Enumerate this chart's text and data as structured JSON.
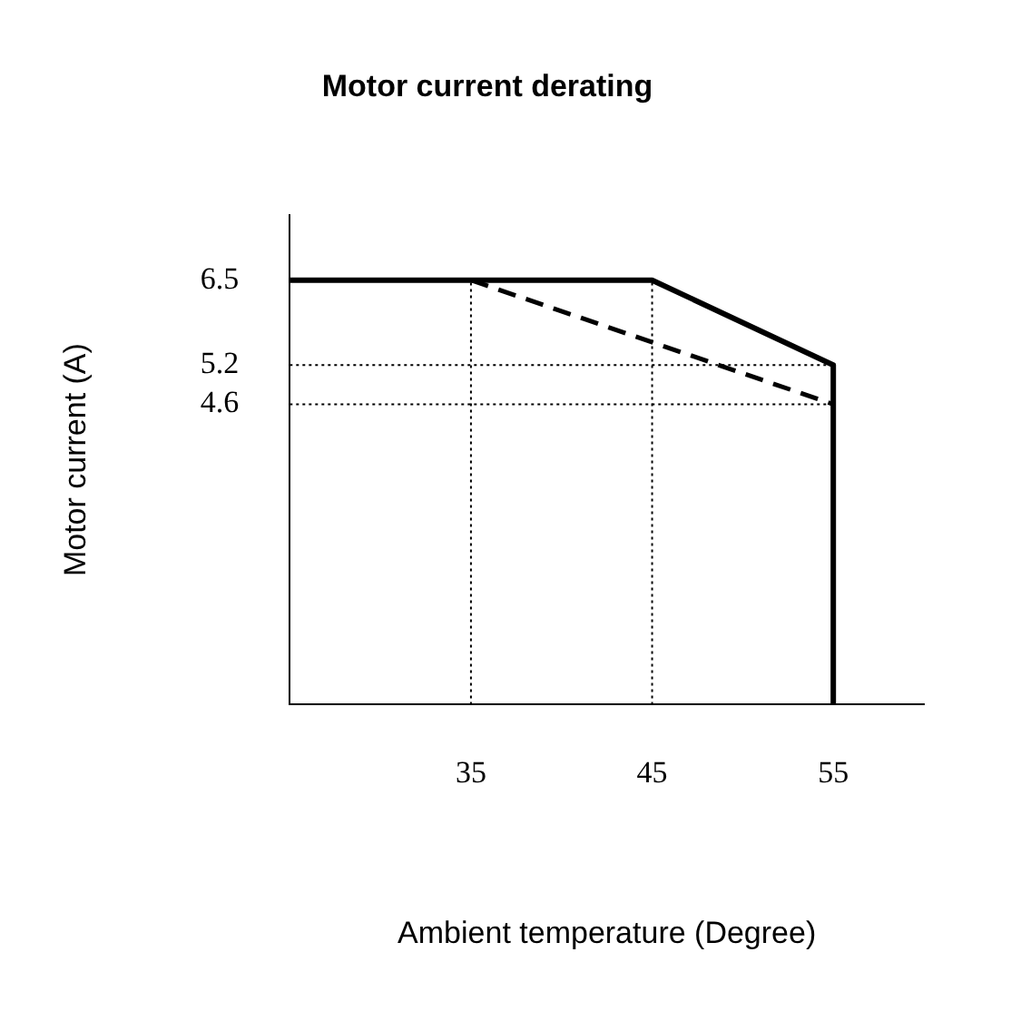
{
  "chart_data": {
    "type": "line",
    "title": "Motor current derating",
    "xlabel": "Ambient temperature (Degree)",
    "ylabel": "Motor current (A)",
    "xlim": [
      25,
      60
    ],
    "xticks": [
      35,
      45,
      55
    ],
    "ylim": [
      0,
      7.5
    ],
    "yticks": [
      4.6,
      5.2,
      6.5
    ],
    "grid": false,
    "legend": false,
    "marker": "none",
    "series": [
      {
        "x": [
          25,
          45,
          55,
          55
        ],
        "values": [
          6.5,
          6.5,
          5.2,
          0
        ],
        "color": "#000000",
        "line_style": "solid"
      },
      {
        "x": [
          35,
          55
        ],
        "values": [
          6.5,
          4.6
        ],
        "color": "#000000",
        "line_style": "dashed"
      }
    ],
    "ref_lines": [
      {
        "axis": "x",
        "value": 35,
        "color": "#000000",
        "line_style": "dotted"
      },
      {
        "axis": "x",
        "value": 45,
        "color": "#000000",
        "line_style": "dotted"
      },
      {
        "axis": "y",
        "value": 5.2,
        "color": "#000000",
        "line_style": "dotted"
      },
      {
        "axis": "y",
        "value": 4.6,
        "color": "#000000",
        "line_style": "dotted"
      }
    ]
  }
}
